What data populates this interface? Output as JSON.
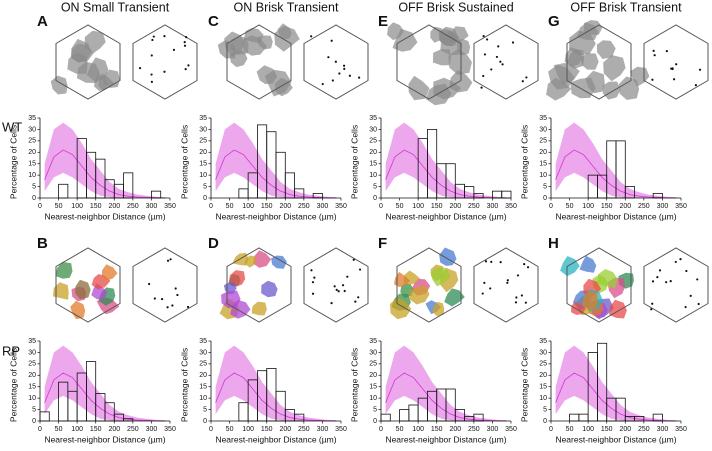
{
  "columns": [
    "ON Small Transient",
    "ON Brisk Transient",
    "OFF Brisk Sustained",
    "OFF Brisk Transient"
  ],
  "rows": [
    "WT",
    "RP"
  ],
  "chart_data": [
    {
      "type": "histogram",
      "panel": "A",
      "xlabel": "Nearest-neighbor Distance (µm)",
      "ylabel": "Percentage of Cells",
      "bins": [
        0,
        25,
        50,
        75,
        100,
        125,
        150,
        175,
        200,
        225,
        250,
        275,
        300,
        325,
        350
      ],
      "counts": [
        0,
        0,
        6,
        0,
        26,
        20,
        17,
        8,
        6,
        11,
        0,
        0,
        3,
        0
      ],
      "color": "#ffffff",
      "xlim": [
        0,
        350
      ],
      "ylim": [
        0,
        35
      ],
      "xticks": [
        0,
        50,
        100,
        150,
        200,
        250,
        300,
        350
      ],
      "yticks": [
        0,
        5,
        10,
        15,
        20,
        25,
        30,
        35
      ],
      "model": {
        "x": [
          12.5,
          37.5,
          62.5,
          87.5,
          112.5,
          137.5,
          162.5,
          187.5,
          212.5,
          237.5,
          262.5,
          287.5,
          312.5,
          337.5
        ],
        "values": [
          8,
          18,
          21,
          19,
          14,
          9,
          5.5,
          3,
          1.5,
          0.8,
          0.4,
          0.2,
          0.1,
          0
        ],
        "lower": [
          3,
          9,
          11,
          9,
          6,
          3,
          1,
          0.3,
          0,
          0,
          0,
          0,
          0,
          0
        ],
        "upper": [
          15,
          30,
          33,
          30,
          24,
          17,
          12,
          7,
          4,
          2.5,
          1.5,
          1,
          0.5,
          0.3
        ],
        "color": "#d63fd6"
      }
    },
    {
      "type": "histogram",
      "panel": "C",
      "xlabel": "Nearest-neighbor Distance (µm)",
      "ylabel": "Percentage of Cells",
      "bins": [
        0,
        25,
        50,
        75,
        100,
        125,
        150,
        175,
        200,
        225,
        250,
        275,
        300,
        325,
        350
      ],
      "counts": [
        0,
        0,
        0,
        4,
        11,
        32,
        29,
        20,
        11,
        4,
        0,
        2,
        0,
        0
      ],
      "color": "#ffffff",
      "xlim": [
        0,
        350
      ],
      "ylim": [
        0,
        35
      ],
      "xticks": [
        0,
        50,
        100,
        150,
        200,
        250,
        300,
        350
      ],
      "yticks": [
        0,
        5,
        10,
        15,
        20,
        25,
        30,
        35
      ],
      "model": {
        "x": [
          12.5,
          37.5,
          62.5,
          87.5,
          112.5,
          137.5,
          162.5,
          187.5,
          212.5,
          237.5,
          262.5,
          287.5,
          312.5,
          337.5
        ],
        "values": [
          8,
          18,
          21,
          19,
          14,
          9,
          5.5,
          3,
          1.5,
          0.8,
          0.4,
          0.2,
          0.1,
          0
        ],
        "lower": [
          3,
          9,
          11,
          9,
          6,
          3,
          1,
          0.3,
          0,
          0,
          0,
          0,
          0,
          0
        ],
        "upper": [
          15,
          30,
          33,
          30,
          24,
          17,
          12,
          7,
          4,
          2.5,
          1.5,
          1,
          0.5,
          0.3
        ],
        "color": "#d63fd6"
      }
    },
    {
      "type": "histogram",
      "panel": "E",
      "xlabel": "Nearest-neighbor Distance (µm)",
      "ylabel": "Percentage of Cells",
      "bins": [
        0,
        25,
        50,
        75,
        100,
        125,
        150,
        175,
        200,
        225,
        250,
        275,
        300,
        325,
        350
      ],
      "counts": [
        0,
        0,
        0,
        0,
        26,
        30,
        15,
        15,
        6,
        5,
        2,
        0,
        3,
        3
      ],
      "color": "#ffffff",
      "xlim": [
        0,
        350
      ],
      "ylim": [
        0,
        35
      ],
      "xticks": [
        0,
        50,
        100,
        150,
        200,
        250,
        300,
        350
      ],
      "yticks": [
        0,
        5,
        10,
        15,
        20,
        25,
        30,
        35
      ],
      "model": {
        "x": [
          12.5,
          37.5,
          62.5,
          87.5,
          112.5,
          137.5,
          162.5,
          187.5,
          212.5,
          237.5,
          262.5,
          287.5,
          312.5,
          337.5
        ],
        "values": [
          8,
          18,
          21,
          19,
          14,
          9,
          5.5,
          3,
          1.5,
          0.8,
          0.4,
          0.2,
          0.1,
          0
        ],
        "lower": [
          3,
          9,
          11,
          9,
          6,
          3,
          1,
          0.3,
          0,
          0,
          0,
          0,
          0,
          0
        ],
        "upper": [
          15,
          30,
          33,
          30,
          24,
          17,
          12,
          7,
          4,
          2.5,
          1.5,
          1,
          0.5,
          0.3
        ],
        "color": "#d63fd6"
      }
    },
    {
      "type": "histogram",
      "panel": "G",
      "xlabel": "Nearest-neighbor Distance (µm)",
      "ylabel": "Percentage of Cells",
      "bins": [
        0,
        25,
        50,
        75,
        100,
        125,
        150,
        175,
        200,
        225,
        250,
        275,
        300,
        325,
        350
      ],
      "counts": [
        0,
        0,
        0,
        0,
        10,
        10,
        25,
        25,
        5,
        0,
        0,
        2,
        0,
        0
      ],
      "color": "#ffffff",
      "xlim": [
        0,
        350
      ],
      "ylim": [
        0,
        35
      ],
      "xticks": [
        0,
        50,
        100,
        150,
        200,
        250,
        300,
        350
      ],
      "yticks": [
        0,
        5,
        10,
        15,
        20,
        25,
        30,
        35
      ],
      "model": {
        "x": [
          12.5,
          37.5,
          62.5,
          87.5,
          112.5,
          137.5,
          162.5,
          187.5,
          212.5,
          237.5,
          262.5,
          287.5,
          312.5,
          337.5
        ],
        "values": [
          8,
          18,
          21,
          19,
          14,
          9,
          5.5,
          3,
          1.5,
          0.8,
          0.4,
          0.2,
          0.1,
          0
        ],
        "lower": [
          3,
          9,
          11,
          9,
          6,
          3,
          1,
          0.3,
          0,
          0,
          0,
          0,
          0,
          0
        ],
        "upper": [
          15,
          30,
          33,
          30,
          24,
          17,
          12,
          7,
          4,
          2.5,
          1.5,
          1,
          0.5,
          0.3
        ],
        "color": "#d63fd6"
      }
    },
    {
      "type": "histogram",
      "panel": "B",
      "xlabel": "Nearest-neighbor Distance (µm)",
      "ylabel": "Percentage of Cells",
      "bins": [
        0,
        25,
        50,
        75,
        100,
        125,
        150,
        175,
        200,
        225,
        250,
        275,
        300,
        325,
        350
      ],
      "counts": [
        4,
        0,
        17,
        13,
        21,
        26,
        12,
        8,
        3,
        1,
        0,
        0,
        0,
        0
      ],
      "color": "#ffffff",
      "xlim": [
        0,
        350
      ],
      "ylim": [
        0,
        35
      ],
      "xticks": [
        0,
        50,
        100,
        150,
        200,
        250,
        300,
        350
      ],
      "yticks": [
        0,
        5,
        10,
        15,
        20,
        25,
        30,
        35
      ],
      "model": {
        "x": [
          12.5,
          37.5,
          62.5,
          87.5,
          112.5,
          137.5,
          162.5,
          187.5,
          212.5,
          237.5,
          262.5,
          287.5,
          312.5,
          337.5
        ],
        "values": [
          8,
          18,
          21,
          19,
          14,
          9,
          5.5,
          3,
          1.5,
          0.8,
          0.4,
          0.2,
          0.1,
          0
        ],
        "lower": [
          3,
          9,
          11,
          9,
          6,
          3,
          1,
          0.3,
          0,
          0,
          0,
          0,
          0,
          0
        ],
        "upper": [
          15,
          30,
          33,
          30,
          24,
          17,
          12,
          7,
          4,
          2.5,
          1.5,
          1,
          0.5,
          0.3
        ],
        "color": "#d63fd6"
      }
    },
    {
      "type": "histogram",
      "panel": "D",
      "xlabel": "Nearest-neighbor Distance (µm)",
      "ylabel": "Percentage of Cells",
      "bins": [
        0,
        25,
        50,
        75,
        100,
        125,
        150,
        175,
        200,
        225,
        250,
        275,
        300,
        325,
        350
      ],
      "counts": [
        0,
        0,
        0,
        8,
        18,
        22,
        23,
        13,
        5,
        3,
        0,
        0,
        0,
        0
      ],
      "color": "#ffffff",
      "xlim": [
        0,
        350
      ],
      "ylim": [
        0,
        35
      ],
      "xticks": [
        0,
        50,
        100,
        150,
        200,
        250,
        300,
        350
      ],
      "yticks": [
        0,
        5,
        10,
        15,
        20,
        25,
        30,
        35
      ],
      "model": {
        "x": [
          12.5,
          37.5,
          62.5,
          87.5,
          112.5,
          137.5,
          162.5,
          187.5,
          212.5,
          237.5,
          262.5,
          287.5,
          312.5,
          337.5
        ],
        "values": [
          8,
          18,
          21,
          19,
          14,
          9,
          5.5,
          3,
          1.5,
          0.8,
          0.4,
          0.2,
          0.1,
          0
        ],
        "lower": [
          3,
          9,
          11,
          9,
          6,
          3,
          1,
          0.3,
          0,
          0,
          0,
          0,
          0,
          0
        ],
        "upper": [
          15,
          30,
          33,
          30,
          24,
          17,
          12,
          7,
          4,
          2.5,
          1.5,
          1,
          0.5,
          0.3
        ],
        "color": "#d63fd6"
      }
    },
    {
      "type": "histogram",
      "panel": "F",
      "xlabel": "Nearest-neighbor Distance (µm)",
      "ylabel": "Percentage of Cells",
      "bins": [
        0,
        25,
        50,
        75,
        100,
        125,
        150,
        175,
        200,
        225,
        250,
        275,
        300,
        325,
        350
      ],
      "counts": [
        3,
        0,
        5,
        7,
        10,
        13,
        14,
        14,
        5,
        2,
        3,
        0,
        0,
        0
      ],
      "color": "#ffffff",
      "xlim": [
        0,
        350
      ],
      "ylim": [
        0,
        35
      ],
      "xticks": [
        0,
        50,
        100,
        150,
        200,
        250,
        300,
        350
      ],
      "yticks": [
        0,
        5,
        10,
        15,
        20,
        25,
        30,
        35
      ],
      "model": {
        "x": [
          12.5,
          37.5,
          62.5,
          87.5,
          112.5,
          137.5,
          162.5,
          187.5,
          212.5,
          237.5,
          262.5,
          287.5,
          312.5,
          337.5
        ],
        "values": [
          8,
          18,
          21,
          19,
          14,
          9,
          5.5,
          3,
          1.5,
          0.8,
          0.4,
          0.2,
          0.1,
          0
        ],
        "lower": [
          3,
          9,
          11,
          9,
          6,
          3,
          1,
          0.3,
          0,
          0,
          0,
          0,
          0,
          0
        ],
        "upper": [
          15,
          30,
          33,
          30,
          24,
          17,
          12,
          7,
          4,
          2.5,
          1.5,
          1,
          0.5,
          0.3
        ],
        "color": "#d63fd6"
      }
    },
    {
      "type": "histogram",
      "panel": "H",
      "xlabel": "Nearest-neighbor Distance (µm)",
      "ylabel": "Percentage of Cells",
      "bins": [
        0,
        25,
        50,
        75,
        100,
        125,
        150,
        175,
        200,
        225,
        250,
        275,
        300,
        325,
        350
      ],
      "counts": [
        0,
        0,
        3,
        3,
        30,
        34,
        10,
        10,
        2,
        2,
        0,
        3,
        0,
        0
      ],
      "color": "#ffffff",
      "xlim": [
        0,
        350
      ],
      "ylim": [
        0,
        35
      ],
      "xticks": [
        0,
        50,
        100,
        150,
        200,
        250,
        300,
        350
      ],
      "yticks": [
        0,
        5,
        10,
        15,
        20,
        25,
        30,
        35
      ],
      "model": {
        "x": [
          12.5,
          37.5,
          62.5,
          87.5,
          112.5,
          137.5,
          162.5,
          187.5,
          212.5,
          237.5,
          262.5,
          287.5,
          312.5,
          337.5
        ],
        "values": [
          8,
          18,
          21,
          19,
          14,
          9,
          5.5,
          3,
          1.5,
          0.8,
          0.4,
          0.2,
          0.1,
          0
        ],
        "lower": [
          3,
          9,
          11,
          9,
          6,
          3,
          1,
          0.3,
          0,
          0,
          0,
          0,
          0,
          0
        ],
        "upper": [
          15,
          30,
          33,
          30,
          24,
          17,
          12,
          7,
          4,
          2.5,
          1.5,
          1,
          0.5,
          0.3
        ],
        "color": "#d63fd6"
      }
    }
  ]
}
